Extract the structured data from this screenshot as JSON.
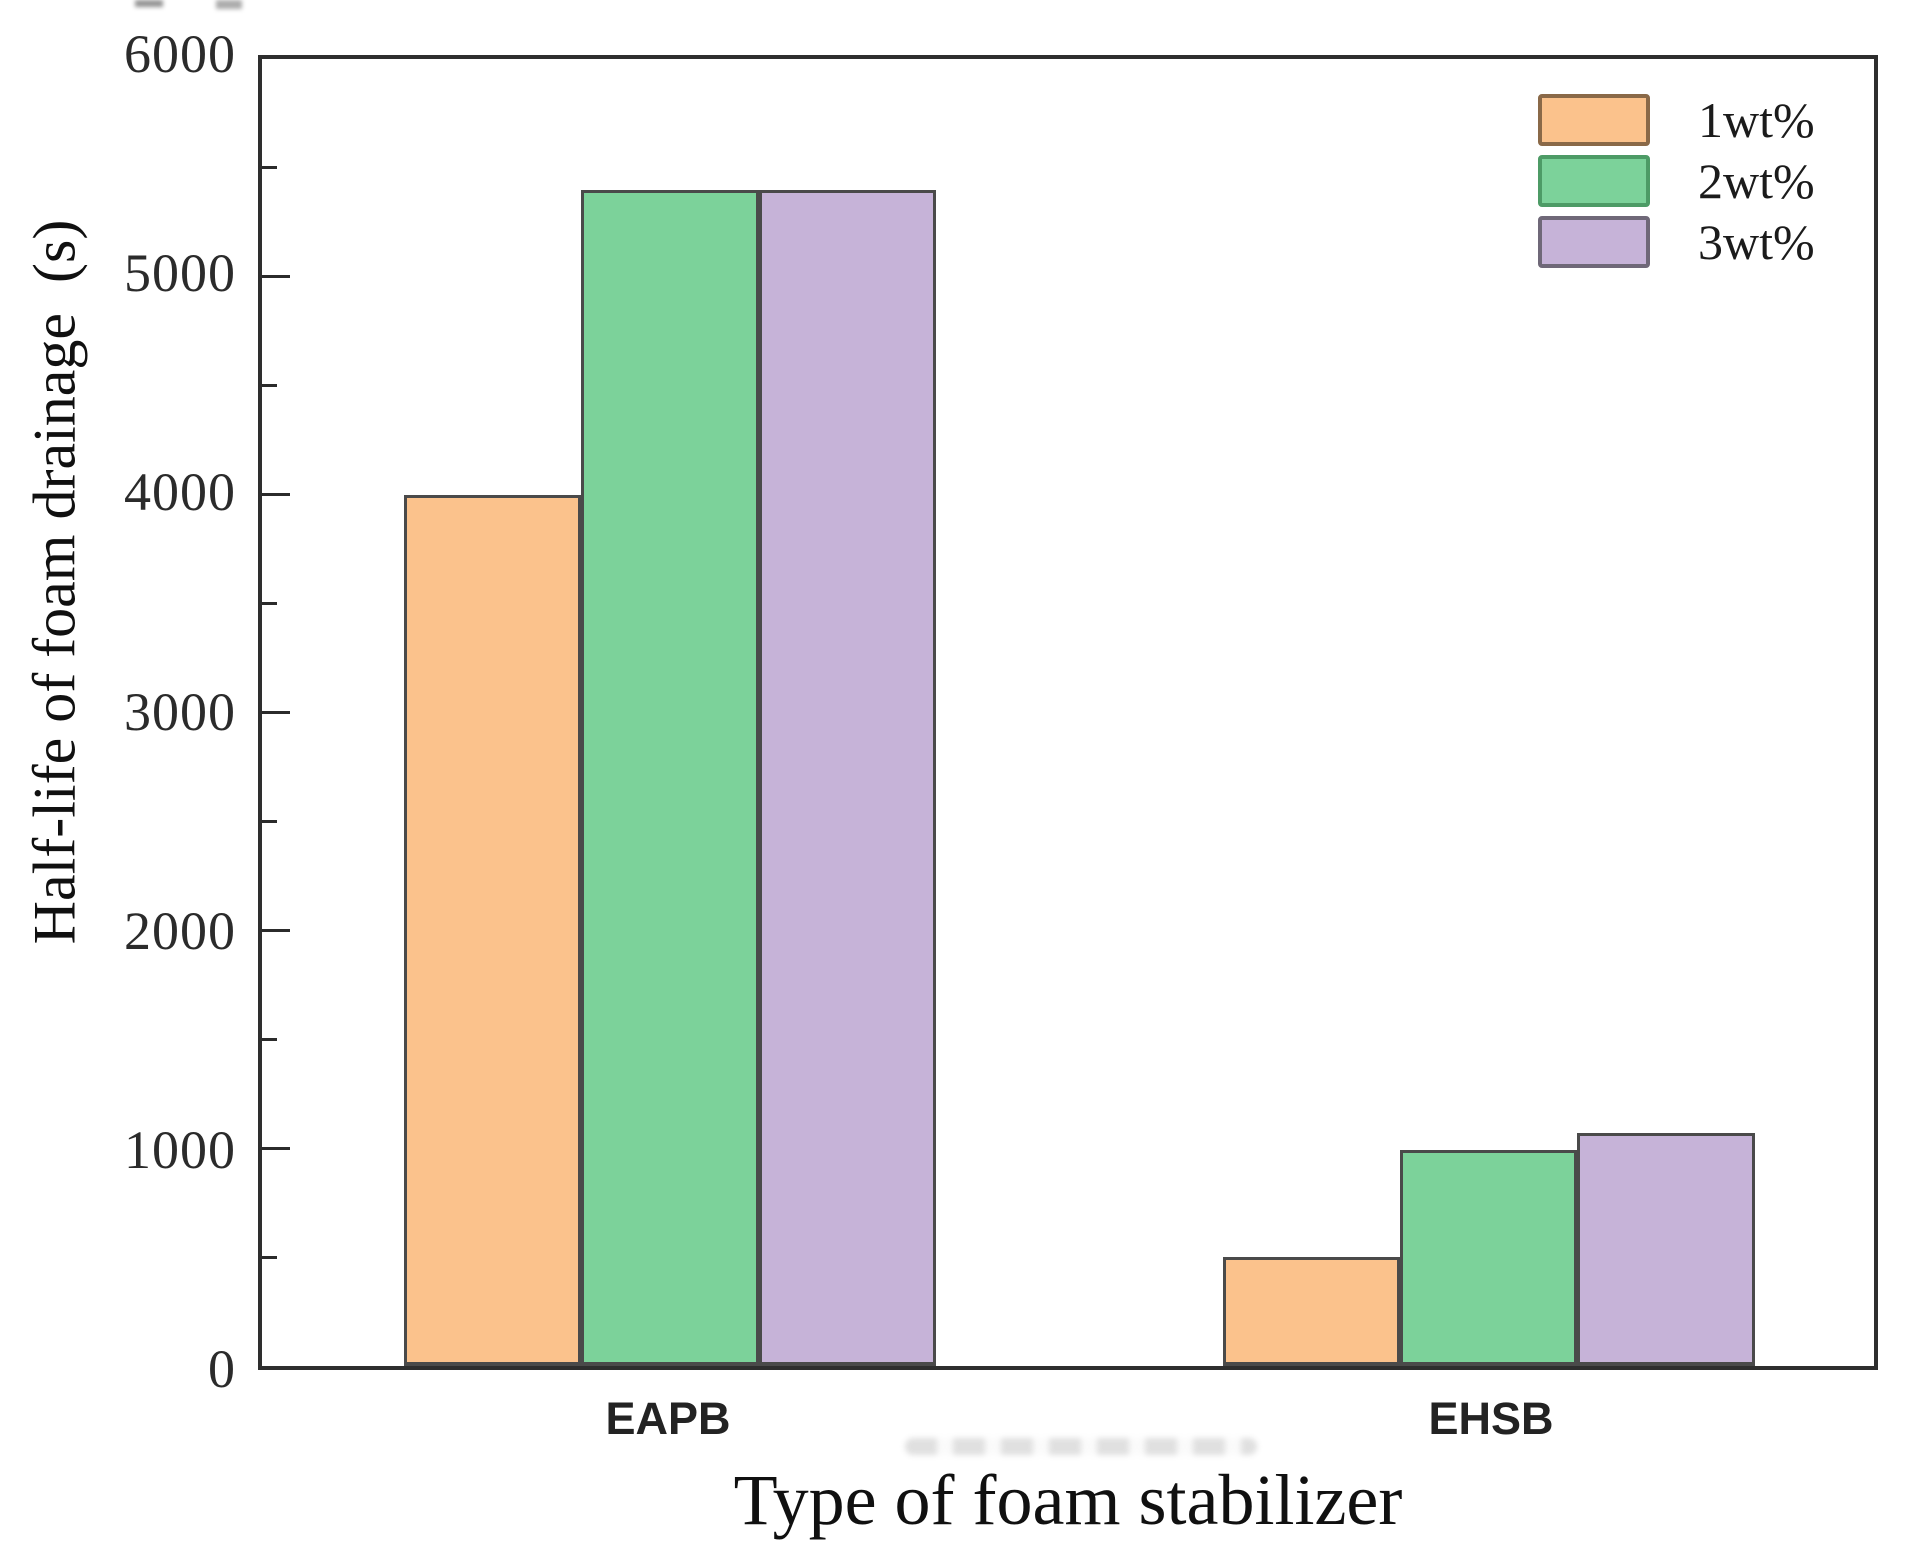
{
  "chart_data": {
    "type": "bar",
    "xlabel": "Type of foam stabilizer",
    "ylabel": "Half-life of foam drainage  (s)",
    "categories": [
      "EAPB",
      "EHSB"
    ],
    "series": [
      {
        "name": "1wt%",
        "color": "#fbc28c",
        "edge_color": "#8a6948",
        "values": [
          4000,
          500
        ]
      },
      {
        "name": "2wt%",
        "color": "#7cd29a",
        "edge_color": "#4d9b66",
        "values": [
          5400,
          990
        ]
      },
      {
        "name": "3wt%",
        "color": "#c6b3d8",
        "edge_color": "#6f6878",
        "values": [
          5400,
          1070
        ]
      }
    ],
    "ylim": [
      0,
      6000
    ],
    "ytick_interval": 1000,
    "yminor_interval": 500,
    "ytick_labels": [
      "0",
      "1000",
      "2000",
      "3000",
      "4000",
      "5000",
      "6000"
    ],
    "grid": false,
    "legend_position": "upper-right",
    "layout": {
      "group_centers_frac": [
        0.2531,
        0.7611
      ],
      "bar_width_frac": 0.1099
    }
  }
}
